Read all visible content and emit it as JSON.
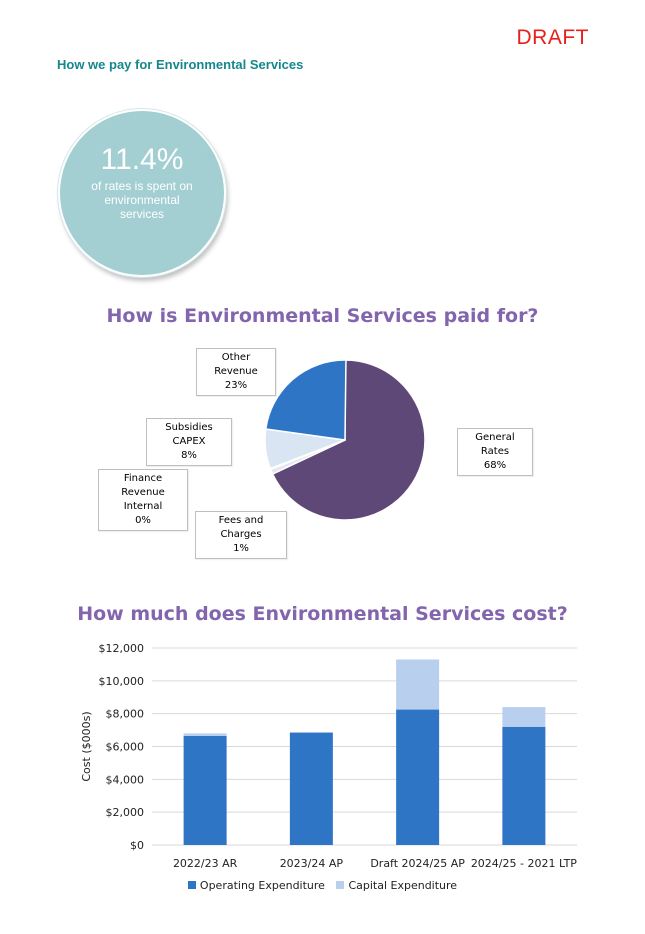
{
  "header": {
    "draft_label": "DRAFT",
    "section_title": "How we pay for Environmental Services"
  },
  "stat": {
    "value": "11.4%",
    "description": "of rates is spent on environmental services"
  },
  "colors": {
    "draft": "#e8201c",
    "section_title": "#14888c",
    "circle": "#a3cfd2",
    "chart_title": "#8265ac",
    "operating": "#2e75c6",
    "capital": "#b9cfee",
    "general_rates": "#5e4877",
    "other_revenue": "#2e75c6",
    "subsidies_capex": "#dae5f3",
    "finance_revenue": "#c9d6e8",
    "fees_and_charges": "#e7e7ef"
  },
  "chart_data": [
    {
      "type": "pie",
      "title": "How is Environmental Services paid for?",
      "slices": [
        {
          "label": "General Rates",
          "value": 68,
          "display": "68%",
          "color": "#5e4877"
        },
        {
          "label": "Fees and Charges",
          "value": 1,
          "display": "1%",
          "color": "#e7e7ef"
        },
        {
          "label": "Finance Revenue Internal",
          "value": 0,
          "display": "0%",
          "color": "#c9d6e8"
        },
        {
          "label": "Subsidies CAPEX",
          "value": 8,
          "display": "8%",
          "color": "#dae5f3"
        },
        {
          "label": "Other Revenue",
          "value": 23,
          "display": "23%",
          "color": "#2e75c6"
        }
      ],
      "legend": "none"
    },
    {
      "type": "bar",
      "stacked": true,
      "title": "How much does Environmental Services cost?",
      "categories": [
        "2022/23 AR",
        "2023/24 AP",
        "Draft 2024/25 AP",
        "2024/25 - 2021 LTP"
      ],
      "series": [
        {
          "name": "Operating Expenditure",
          "values": [
            6650,
            6850,
            8250,
            7200
          ],
          "color": "#2e75c6"
        },
        {
          "name": "Capital Expenditure",
          "values": [
            150,
            0,
            3050,
            1200
          ],
          "color": "#b9cfee"
        }
      ],
      "ylabel": "Cost ($000s)",
      "ylim": [
        0,
        12000
      ],
      "yticks": [
        0,
        2000,
        4000,
        6000,
        8000,
        10000,
        12000
      ],
      "ytick_labels": [
        "$0",
        "$2,000",
        "$4,000",
        "$6,000",
        "$8,000",
        "$10,000",
        "$12,000"
      ],
      "grid": true,
      "legend": "bottom"
    }
  ]
}
